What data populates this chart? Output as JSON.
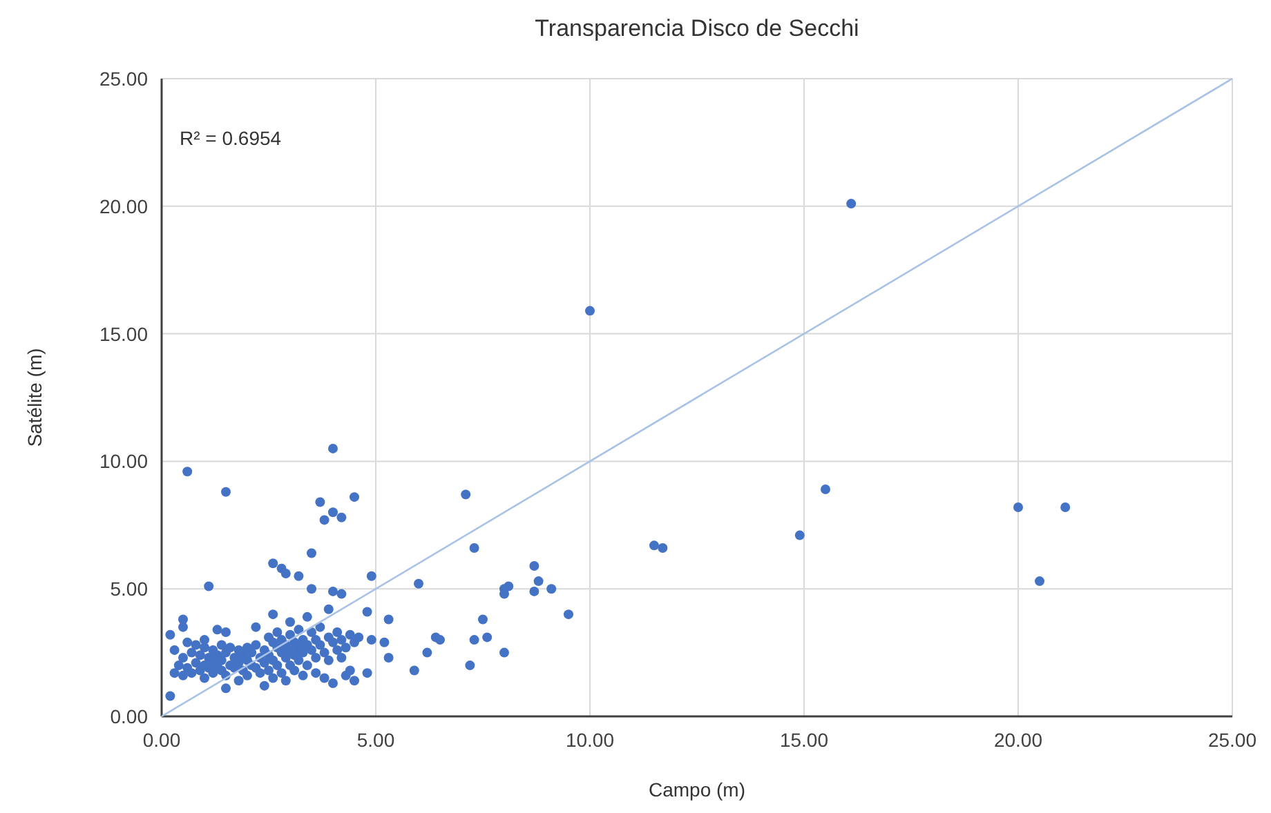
{
  "chart_data": {
    "type": "scatter",
    "title": "Transparencia Disco de Secchi",
    "xlabel": "Campo (m)",
    "ylabel": "Satélite (m)",
    "annotations": [
      "R² = 0.6954"
    ],
    "xlim": [
      0,
      25
    ],
    "ylim": [
      0,
      25
    ],
    "xticks": [
      {
        "value": 0,
        "label": "0.00"
      },
      {
        "value": 5,
        "label": "5.00"
      },
      {
        "value": 10,
        "label": "10.00"
      },
      {
        "value": 15,
        "label": "15.00"
      },
      {
        "value": 20,
        "label": "20.00"
      },
      {
        "value": 25,
        "label": "25.00"
      }
    ],
    "yticks": [
      {
        "value": 0,
        "label": "0.00"
      },
      {
        "value": 5,
        "label": "5.00"
      },
      {
        "value": 10,
        "label": "10.00"
      },
      {
        "value": 15,
        "label": "15.00"
      },
      {
        "value": 20,
        "label": "20.00"
      },
      {
        "value": 25,
        "label": "25.00"
      }
    ],
    "grid": true,
    "series": [
      {
        "marker": "circle",
        "color": "#4472c4",
        "x": [
          0.3,
          0.4,
          0.5,
          0.5,
          0.6,
          0.7,
          0.7,
          0.8,
          0.8,
          0.9,
          0.9,
          1.0,
          1.0,
          1.0,
          1.1,
          1.1,
          1.2,
          1.2,
          1.2,
          1.3,
          1.3,
          1.4,
          1.4,
          1.4,
          1.5,
          1.5,
          1.6,
          1.6,
          1.7,
          1.7,
          1.8,
          1.8,
          1.8,
          1.9,
          1.9,
          2.0,
          2.0,
          2.0,
          2.1,
          2.1,
          2.2,
          2.2,
          2.3,
          2.3,
          2.4,
          2.4,
          2.5,
          2.5,
          2.5,
          2.6,
          2.6,
          2.6,
          2.7,
          2.7,
          2.7,
          2.8,
          2.8,
          2.8,
          2.9,
          2.9,
          2.9,
          3.0,
          3.0,
          3.0,
          3.1,
          3.1,
          3.1,
          3.2,
          3.2,
          3.2,
          3.3,
          3.3,
          3.3,
          3.4,
          3.4,
          3.5,
          3.5,
          3.6,
          3.6,
          3.6,
          3.7,
          3.7,
          3.8,
          3.8,
          3.9,
          3.9,
          4.0,
          4.0,
          4.1,
          4.1,
          4.2,
          4.2,
          4.3,
          4.3,
          4.4,
          4.5,
          4.6,
          4.4,
          0.3,
          0.6,
          1.0,
          1.3,
          2.2,
          2.6,
          3.0,
          3.4,
          0.6,
          1.5,
          4.0,
          3.7,
          3.8,
          4.0,
          4.2,
          4.5,
          7.1,
          10.0,
          16.1,
          15.5,
          14.9,
          11.5,
          11.7,
          20.0,
          21.1,
          20.5,
          7.3,
          8.7,
          8.8,
          9.1,
          8.7,
          9.5,
          8.0,
          8.0,
          8.1,
          7.5,
          7.3,
          7.6,
          7.2,
          8.0,
          6.4,
          6.5,
          6.2,
          5.9,
          6.0,
          5.3,
          4.9,
          5.2,
          5.3,
          4.9,
          4.8,
          4.5,
          3.5,
          2.6,
          2.8,
          2.9,
          1.1,
          3.2,
          3.5,
          4.0,
          4.2,
          3.9,
          4.8,
          0.5,
          0.5,
          0.2,
          0.2,
          1.5,
          1.5,
          2.4
        ],
        "values": [
          1.7,
          2.0,
          1.6,
          2.3,
          1.9,
          2.5,
          1.7,
          2.1,
          2.8,
          1.8,
          2.4,
          2.0,
          2.7,
          1.5,
          2.3,
          1.9,
          2.6,
          2.1,
          1.7,
          2.4,
          2.0,
          2.8,
          1.8,
          2.2,
          2.5,
          1.6,
          2.0,
          2.7,
          2.3,
          1.9,
          2.6,
          2.1,
          1.4,
          2.4,
          1.8,
          2.7,
          2.2,
          1.6,
          2.0,
          2.5,
          1.9,
          2.8,
          2.3,
          1.7,
          2.6,
          2.1,
          3.1,
          2.4,
          1.8,
          2.9,
          2.2,
          1.5,
          2.7,
          3.3,
          2.0,
          2.5,
          3.0,
          1.7,
          2.3,
          2.8,
          1.4,
          3.2,
          2.6,
          2.0,
          2.9,
          2.4,
          1.8,
          3.4,
          2.7,
          2.2,
          3.0,
          2.5,
          1.6,
          2.8,
          2.0,
          3.3,
          2.6,
          3.0,
          2.3,
          1.7,
          2.8,
          3.5,
          2.5,
          1.5,
          3.1,
          2.2,
          2.9,
          1.3,
          3.3,
          2.6,
          3.0,
          2.3,
          2.7,
          1.6,
          3.2,
          2.9,
          3.1,
          1.8,
          2.6,
          2.9,
          3.0,
          3.4,
          3.5,
          4.0,
          3.7,
          3.9,
          9.6,
          8.8,
          10.5,
          8.4,
          7.7,
          8.0,
          7.8,
          8.6,
          8.7,
          15.9,
          20.1,
          8.9,
          7.1,
          6.7,
          6.6,
          8.2,
          8.2,
          5.3,
          6.6,
          5.9,
          5.3,
          5.0,
          4.9,
          4.0,
          5.0,
          4.8,
          5.1,
          3.8,
          3.0,
          3.1,
          2.0,
          2.5,
          3.1,
          3.0,
          2.5,
          1.8,
          5.2,
          3.8,
          5.5,
          2.9,
          2.3,
          3.0,
          1.7,
          1.4,
          6.4,
          6.0,
          5.8,
          5.6,
          5.1,
          5.5,
          5.0,
          4.9,
          4.8,
          4.2,
          4.1,
          3.8,
          3.5,
          3.2,
          0.8,
          3.3,
          1.1,
          1.2
        ]
      },
      {
        "type": "line",
        "marker": "none",
        "color": "#a9c2e6",
        "x": [
          0,
          25
        ],
        "values": [
          0,
          25
        ]
      }
    ]
  }
}
